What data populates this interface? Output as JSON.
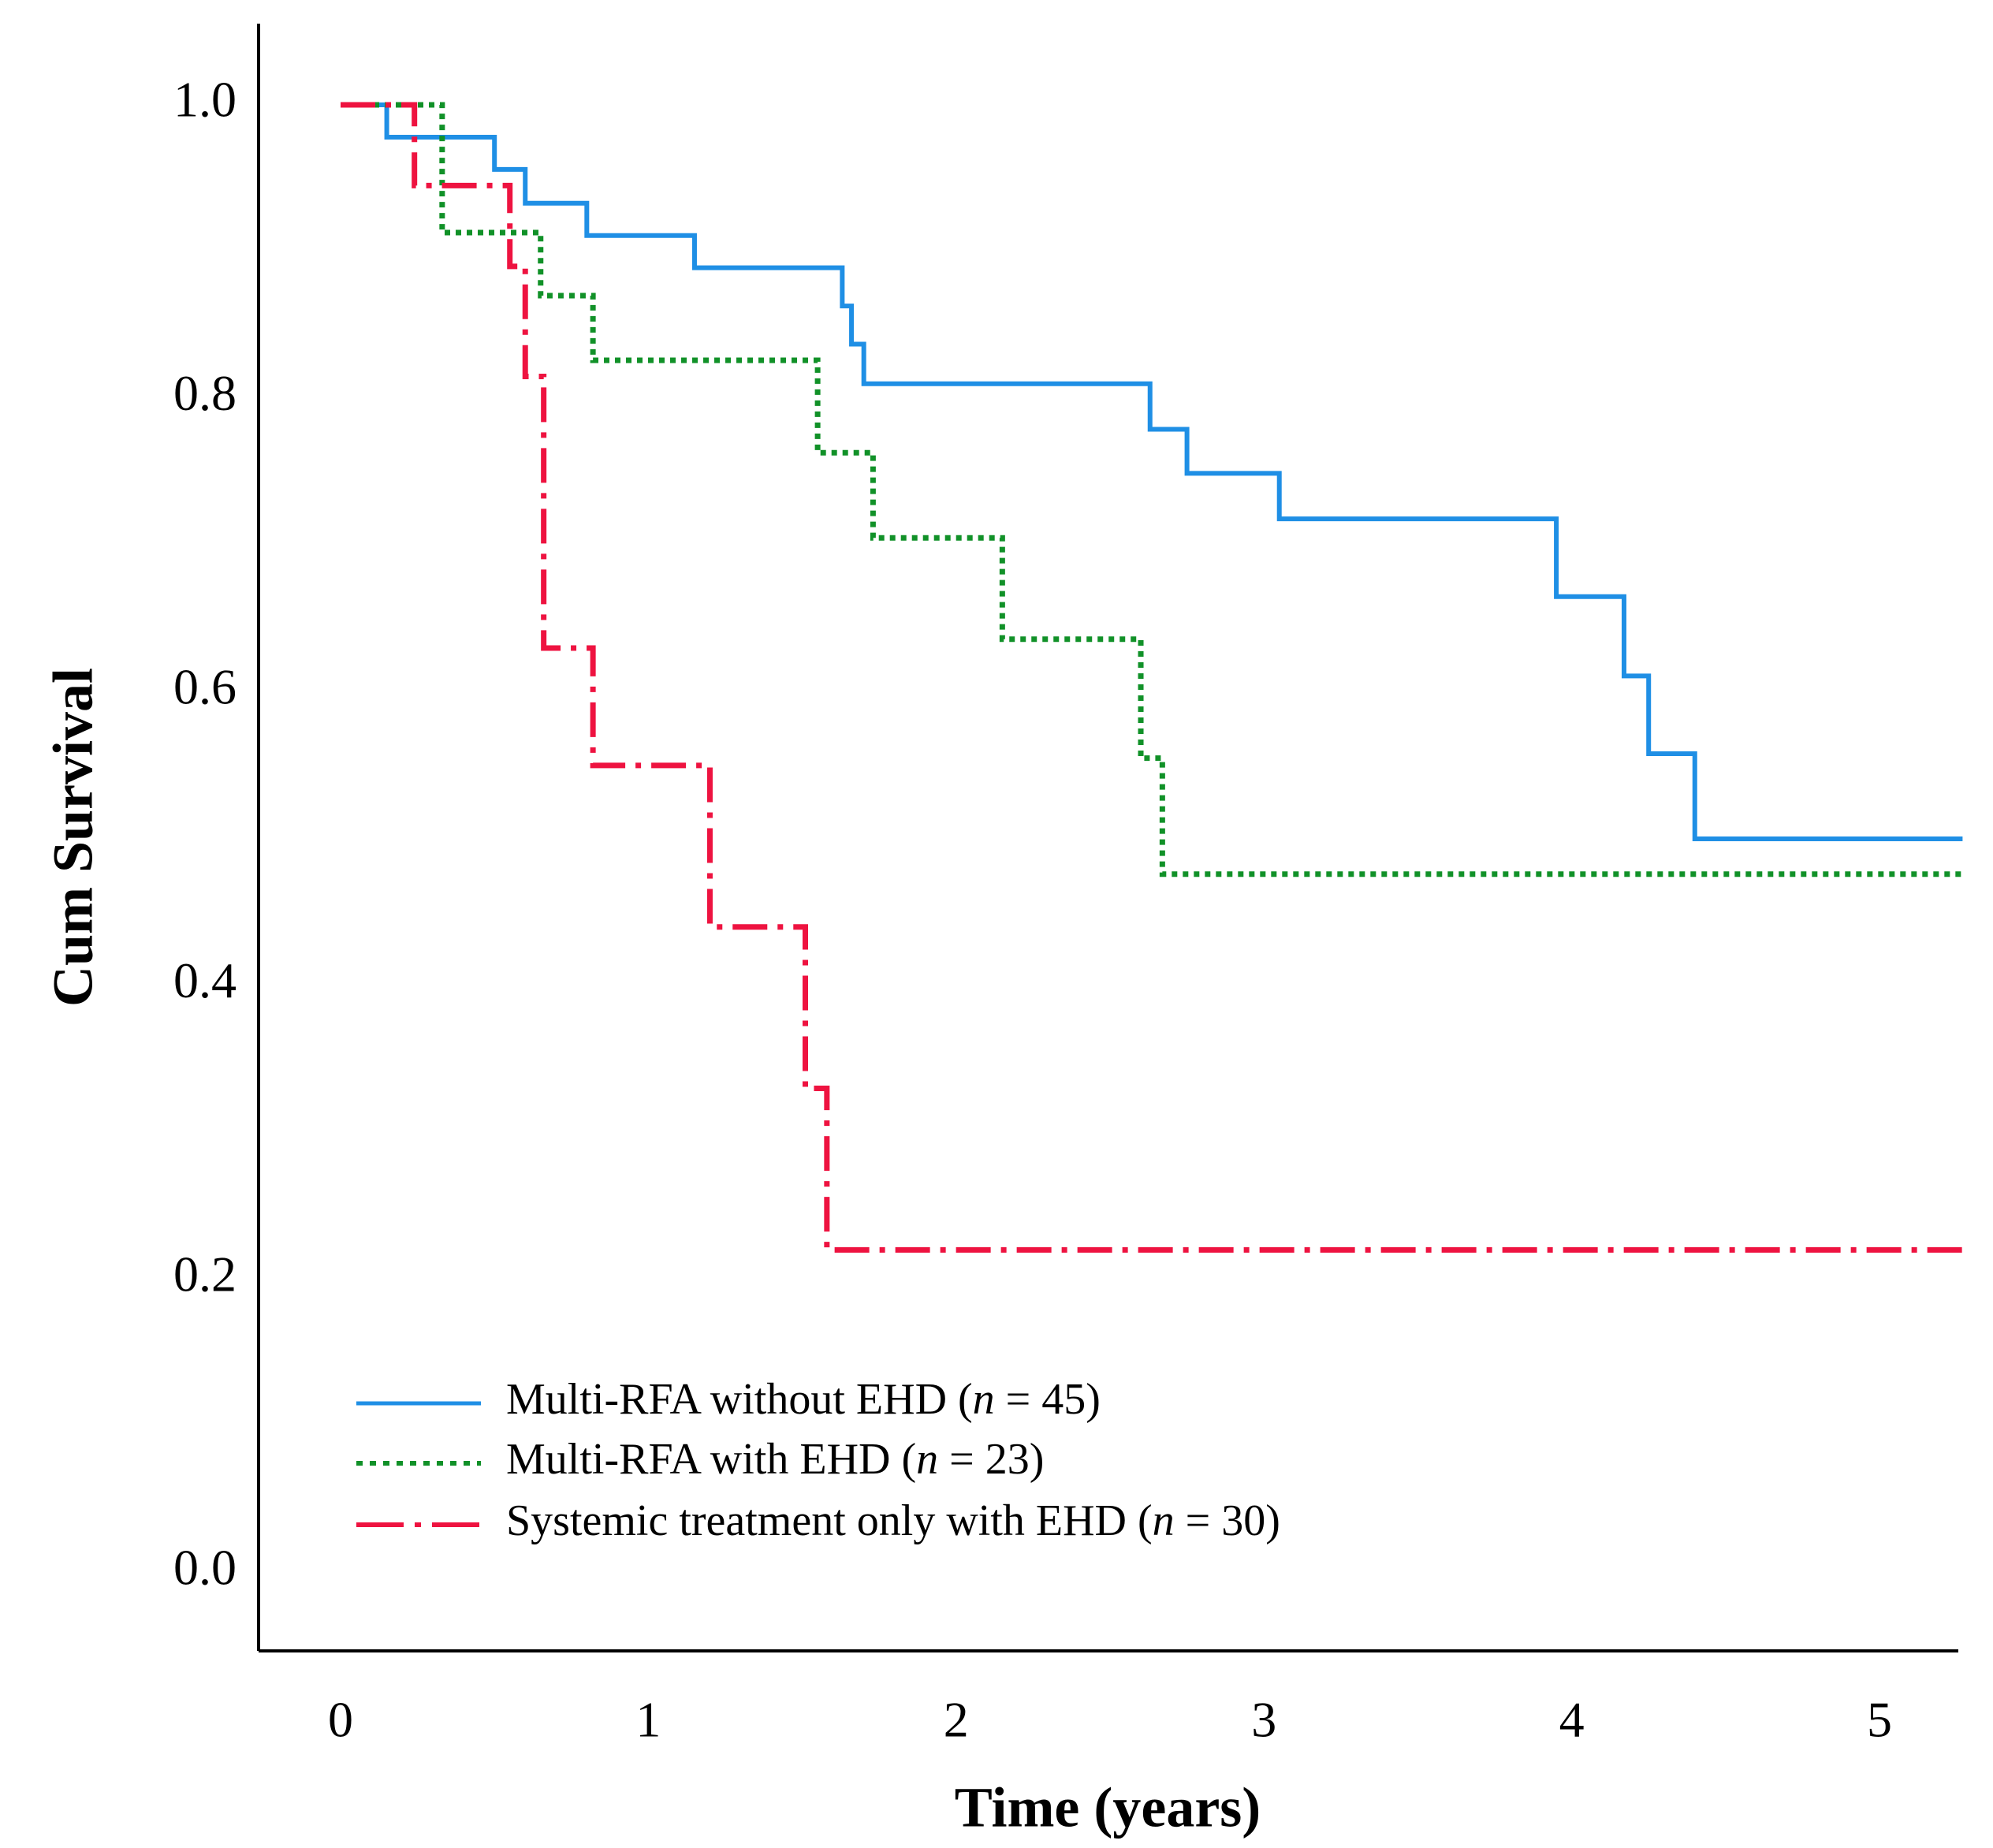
{
  "chart_data": {
    "type": "line",
    "subtype": "kaplan-meier step",
    "title": "",
    "xlabel": "Time (years)",
    "ylabel": "Cum Survival",
    "xlim": [
      -0.27,
      5.27
    ],
    "ylim": [
      -0.07,
      1.06
    ],
    "x_ticks": [
      0,
      1,
      2,
      3,
      4,
      5
    ],
    "x_tick_labels": [
      "0",
      "1",
      "2",
      "3",
      "4",
      "5"
    ],
    "y_ticks": [
      0.0,
      0.2,
      0.4,
      0.6,
      0.8,
      1.0
    ],
    "y_tick_labels": [
      "0.0",
      "0.2",
      "0.4",
      "0.6",
      "0.8",
      "1.0"
    ],
    "grid": false,
    "legend_position": "bottom-left",
    "series": [
      {
        "name": "Multi-RFA without EHD",
        "label_prefix": "Multi-RFA without EHD (",
        "label_n": "n",
        "label_suffix": " = 45)",
        "color": "#1f8fe5",
        "style": "solid",
        "x_end": 5.27,
        "steps": [
          [
            0,
            1.0
          ],
          [
            0.15,
            0.978
          ],
          [
            0.5,
            0.956
          ],
          [
            0.6,
            0.933
          ],
          [
            0.8,
            0.911
          ],
          [
            1.15,
            0.889
          ],
          [
            1.63,
            0.863
          ],
          [
            1.66,
            0.837
          ],
          [
            1.7,
            0.81
          ],
          [
            2.63,
            0.779
          ],
          [
            2.75,
            0.749
          ],
          [
            3.05,
            0.718
          ],
          [
            3.95,
            0.665
          ],
          [
            4.17,
            0.611
          ],
          [
            4.25,
            0.558
          ],
          [
            4.4,
            0.5
          ]
        ]
      },
      {
        "name": "Multi-RFA with EHD",
        "label_prefix": "Multi-RFA with EHD (",
        "label_n": "n",
        "label_suffix": " = 23)",
        "color": "#119128",
        "style": "dotted",
        "x_end": 5.27,
        "steps": [
          [
            0,
            1.0
          ],
          [
            0.33,
            0.913
          ],
          [
            0.65,
            0.87
          ],
          [
            0.82,
            0.826
          ],
          [
            1.55,
            0.763
          ],
          [
            1.73,
            0.705
          ],
          [
            2.15,
            0.636
          ],
          [
            2.6,
            0.555
          ],
          [
            2.67,
            0.476
          ]
        ]
      },
      {
        "name": "Systemic treatment only with EHD",
        "label_prefix": "Systemic treatment only with EHD (",
        "label_n": "n",
        "label_suffix": " = 30)",
        "color": "#ee1340",
        "style": "dashdot",
        "x_end": 5.27,
        "steps": [
          [
            0,
            1.0
          ],
          [
            0.24,
            0.945
          ],
          [
            0.55,
            0.89
          ],
          [
            0.6,
            0.815
          ],
          [
            0.66,
            0.63
          ],
          [
            0.82,
            0.55
          ],
          [
            1.2,
            0.44
          ],
          [
            1.51,
            0.33
          ],
          [
            1.58,
            0.22
          ]
        ]
      }
    ]
  }
}
